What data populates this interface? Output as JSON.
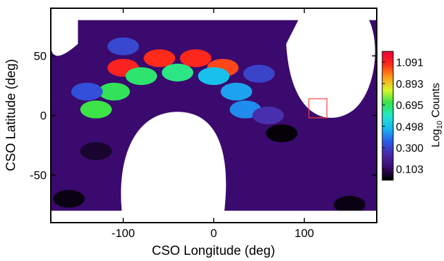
{
  "chart_data": {
    "type": "heatmap",
    "xlabel": "CSO Longitude (deg)",
    "ylabel": "CSO Latitude (deg)",
    "xlim": [
      -180,
      180
    ],
    "ylim": [
      -90,
      90
    ],
    "x_ticks": [
      "-100",
      "0",
      "100"
    ],
    "x_tick_values": [
      -100,
      0,
      100
    ],
    "y_ticks": [
      "50",
      "0",
      "-50"
    ],
    "y_tick_values": [
      50,
      0,
      -50
    ],
    "colorbar": {
      "label_main": "Log",
      "label_sub": "10",
      "label_rest": " Counts",
      "ticks": [
        "1.091",
        "0.893",
        "0.695",
        "0.498",
        "0.300",
        "0.103"
      ],
      "tick_values": [
        1.091,
        0.893,
        0.695,
        0.498,
        0.3,
        0.103
      ],
      "range": [
        0.0,
        1.19
      ],
      "colors": [
        "#000000",
        "#3a0a6e",
        "#4b2aa8",
        "#2b5be8",
        "#17b7f2",
        "#22e7c9",
        "#34e34a",
        "#d9f62b",
        "#ff9a1a",
        "#ff2a1a",
        "#e8003a"
      ]
    },
    "background_value": 0.12,
    "cells": [
      {
        "lon": -100,
        "lat": 40,
        "value": 1.09
      },
      {
        "lon": -60,
        "lat": 48,
        "value": 1.07
      },
      {
        "lon": -20,
        "lat": 48,
        "value": 1.08
      },
      {
        "lon": 10,
        "lat": 40,
        "value": 1.04
      },
      {
        "lon": -130,
        "lat": 5,
        "value": 0.72
      },
      {
        "lon": -110,
        "lat": 20,
        "value": 0.7
      },
      {
        "lon": -80,
        "lat": 33,
        "value": 0.68
      },
      {
        "lon": -40,
        "lat": 36,
        "value": 0.66
      },
      {
        "lon": 0,
        "lat": 33,
        "value": 0.5
      },
      {
        "lon": 25,
        "lat": 20,
        "value": 0.45
      },
      {
        "lon": 35,
        "lat": 5,
        "value": 0.42
      },
      {
        "lon": -140,
        "lat": 20,
        "value": 0.33
      },
      {
        "lon": -100,
        "lat": 58,
        "value": 0.31
      },
      {
        "lon": 50,
        "lat": 35,
        "value": 0.3
      },
      {
        "lon": 60,
        "lat": 0,
        "value": 0.25
      },
      {
        "lon": 75,
        "lat": -15,
        "value": 0.01
      },
      {
        "lon": -160,
        "lat": -70,
        "value": 0.02
      },
      {
        "lon": 150,
        "lat": -75,
        "value": 0.02
      },
      {
        "lon": -130,
        "lat": -30,
        "value": 0.05
      }
    ],
    "highlight_box": {
      "lon_range": [
        105,
        125
      ],
      "lat_range": [
        -2,
        14
      ],
      "color": "#ff3b3b"
    }
  }
}
